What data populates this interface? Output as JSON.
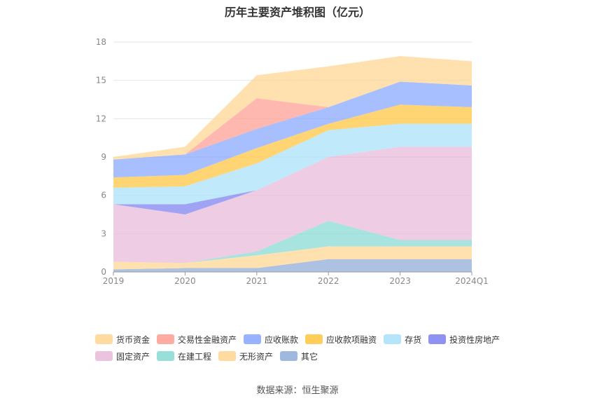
{
  "chart_data": {
    "type": "area",
    "title": "历年主要资产堆积图（亿元）",
    "categories": [
      "2019",
      "2020",
      "2021",
      "2022",
      "2023",
      "2024Q1"
    ],
    "ylim": [
      0,
      18
    ],
    "yticks": [
      0,
      3,
      6,
      9,
      12,
      15,
      18
    ],
    "grid": true,
    "legend_position": "bottom",
    "series": [
      {
        "name": "其它",
        "color": "#8eabd7",
        "values": [
          0.2,
          0.3,
          0.3,
          1.0,
          1.0,
          1.0
        ]
      },
      {
        "name": "无形资产",
        "color": "#ffd591",
        "values": [
          0.6,
          0.4,
          1.0,
          1.0,
          1.0,
          1.0
        ]
      },
      {
        "name": "在建工程",
        "color": "#86d9d3",
        "values": [
          0.0,
          0.0,
          0.3,
          2.0,
          0.5,
          0.5
        ]
      },
      {
        "name": "固定资产",
        "color": "#e8b8d8",
        "values": [
          4.5,
          3.8,
          4.8,
          5.0,
          7.3,
          7.3
        ]
      },
      {
        "name": "投资性房地产",
        "color": "#7b7ff0",
        "values": [
          0.0,
          0.8,
          0.0,
          0.0,
          0.0,
          0.0
        ]
      },
      {
        "name": "存货",
        "color": "#a8e0fa",
        "values": [
          1.3,
          1.4,
          2.1,
          2.1,
          1.8,
          1.8
        ]
      },
      {
        "name": "应收款项融资",
        "color": "#ffc53d",
        "values": [
          0.8,
          0.9,
          1.2,
          0.5,
          1.5,
          1.3
        ]
      },
      {
        "name": "应收账款",
        "color": "#85a5ff",
        "values": [
          1.4,
          1.6,
          1.5,
          1.3,
          1.8,
          1.7
        ]
      },
      {
        "name": "交易性金融资产",
        "color": "#ff9c92",
        "values": [
          0.0,
          0.0,
          2.4,
          0.0,
          0.0,
          0.0
        ]
      },
      {
        "name": "货币资金",
        "color": "#ffd591",
        "values": [
          0.2,
          0.6,
          1.8,
          3.2,
          2.0,
          1.9
        ]
      }
    ],
    "legend_order": [
      "货币资金",
      "交易性金融资产",
      "应收账款",
      "应收款项融资",
      "存货",
      "投资性房地产",
      "固定资产",
      "在建工程",
      "无形资产",
      "其它"
    ]
  },
  "source_text": "数据来源：恒生聚源"
}
